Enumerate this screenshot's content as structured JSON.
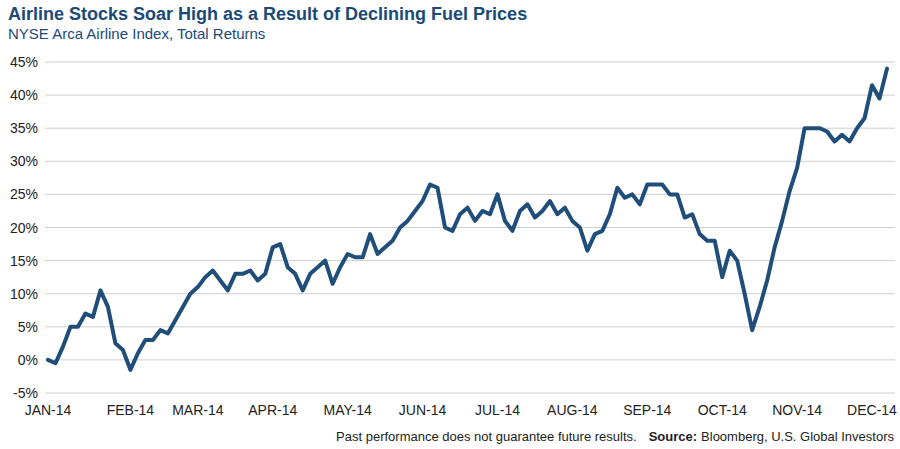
{
  "chart_data": {
    "type": "line",
    "title": "Airline Stocks Soar High as a Result of Declining Fuel Prices",
    "subtitle": "NYSE Arca Airline Index, Total Returns",
    "footnote": "Past performance does not guarantee future results.",
    "source_label": "Source:",
    "source": "Bloomberg, U.S. Global Investors",
    "color": "#1f4e7a",
    "grid": true,
    "ylim": [
      -5,
      45
    ],
    "yticks": [
      {
        "value": -5,
        "label": "-5%"
      },
      {
        "value": 0,
        "label": "0%"
      },
      {
        "value": 5,
        "label": "5%"
      },
      {
        "value": 10,
        "label": "10%"
      },
      {
        "value": 15,
        "label": "15%"
      },
      {
        "value": 20,
        "label": "20%"
      },
      {
        "value": 25,
        "label": "25%"
      },
      {
        "value": 30,
        "label": "30%"
      },
      {
        "value": 35,
        "label": "35%"
      },
      {
        "value": 40,
        "label": "40%"
      },
      {
        "value": 45,
        "label": "45%"
      }
    ],
    "categories": [
      "JAN-14",
      null,
      null,
      null,
      null,
      null,
      null,
      null,
      null,
      null,
      null,
      "FEB-14",
      null,
      null,
      null,
      null,
      null,
      null,
      null,
      null,
      "MAR-14",
      null,
      null,
      null,
      null,
      null,
      null,
      null,
      null,
      null,
      "APR-14",
      null,
      null,
      null,
      null,
      null,
      null,
      null,
      null,
      null,
      "MAY-14",
      null,
      null,
      null,
      null,
      null,
      null,
      null,
      null,
      null,
      "JUN-14",
      null,
      null,
      null,
      null,
      null,
      null,
      null,
      null,
      null,
      "JUL-14",
      null,
      null,
      null,
      null,
      null,
      null,
      null,
      null,
      null,
      "AUG-14",
      null,
      null,
      null,
      null,
      null,
      null,
      null,
      null,
      null,
      "SEP-14",
      null,
      null,
      null,
      null,
      null,
      null,
      null,
      null,
      null,
      "OCT-14",
      null,
      null,
      null,
      null,
      null,
      null,
      null,
      null,
      null,
      "NOV-14",
      null,
      null,
      null,
      null,
      null,
      null,
      null,
      null,
      null,
      "DEC-14",
      null,
      null
    ],
    "values": [
      0,
      -0.5,
      2,
      5,
      5,
      7,
      6.5,
      10.5,
      8,
      2.5,
      1.5,
      -1.5,
      1,
      3,
      3,
      4.5,
      4,
      6,
      8,
      10,
      11,
      12.5,
      13.5,
      12,
      10.5,
      13,
      13,
      13.5,
      12,
      13,
      17,
      17.5,
      14,
      13,
      10.5,
      13,
      14,
      15,
      11.5,
      14,
      16,
      15.5,
      15.5,
      19,
      16,
      17,
      18,
      20,
      21,
      22.5,
      24,
      26.5,
      26,
      20,
      19.5,
      22,
      23,
      21,
      22.5,
      22,
      25,
      21,
      19.5,
      22.5,
      23.5,
      21.5,
      22.5,
      24,
      22,
      23,
      21,
      20,
      16.5,
      19,
      19.5,
      22,
      26,
      24.5,
      25,
      23.5,
      26.5,
      26.5,
      26.5,
      25,
      25,
      21.5,
      22,
      19,
      18,
      18,
      12.5,
      16.5,
      15,
      10,
      4.5,
      8,
      12,
      17,
      21,
      25.5,
      29,
      35,
      35,
      35,
      34.5,
      33,
      34,
      33,
      35,
      36.5,
      41.5,
      39.5,
      44
    ]
  }
}
